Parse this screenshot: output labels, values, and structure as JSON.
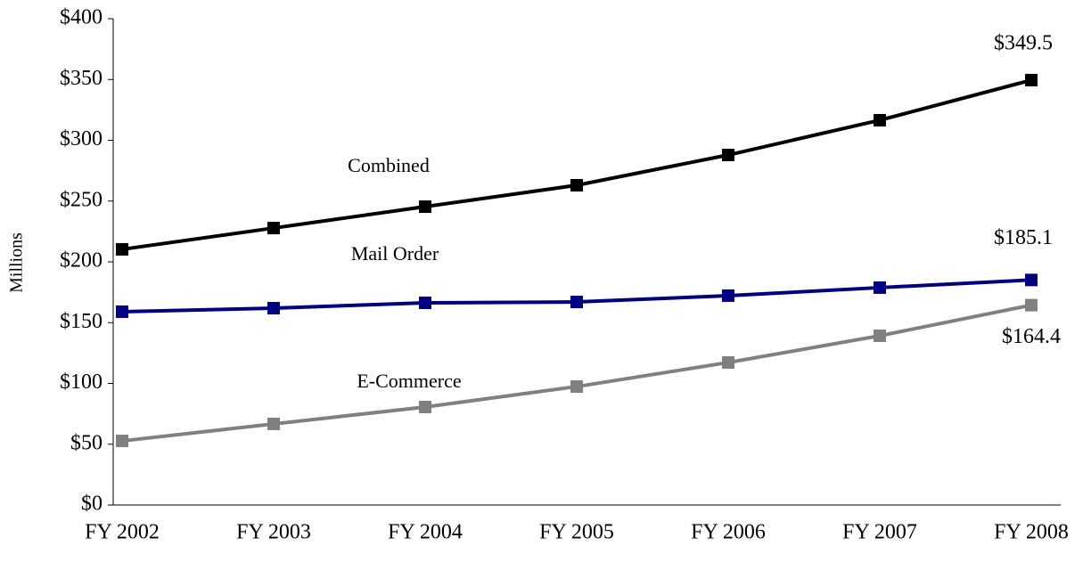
{
  "chart_data": {
    "type": "line",
    "ylabel": "Millions",
    "categories": [
      "FY 2002",
      "FY 2003",
      "FY 2004",
      "FY 2005",
      "FY 2006",
      "FY 2007",
      "FY 2008"
    ],
    "series": [
      {
        "name": "Combined",
        "color": "#000000",
        "values": [
          210.3,
          227.8,
          245.4,
          263.0,
          287.9,
          316.5,
          349.5
        ],
        "value_labels": [
          null,
          null,
          null,
          null,
          null,
          null,
          "$349.5"
        ]
      },
      {
        "name": "Mail Order",
        "color": "#000080",
        "values": [
          159.0,
          161.9,
          166.3,
          167.0,
          172.2,
          178.8,
          185.1
        ],
        "value_labels": [
          null,
          null,
          null,
          null,
          null,
          null,
          "$185.1"
        ]
      },
      {
        "name": "E-Commerce",
        "color": "#808080",
        "values": [
          52.7,
          66.7,
          80.6,
          97.4,
          117.2,
          139.2,
          164.4
        ],
        "value_labels": [
          null,
          null,
          null,
          null,
          null,
          null,
          "$164.4"
        ]
      }
    ],
    "ylim": [
      0,
      400
    ],
    "yticks": [
      {
        "value": 0,
        "label": "$0"
      },
      {
        "value": 50,
        "label": "$50"
      },
      {
        "value": 100,
        "label": "$100"
      },
      {
        "value": 150,
        "label": "$150"
      },
      {
        "value": 200,
        "label": "$200"
      },
      {
        "value": 250,
        "label": "$250"
      },
      {
        "value": 300,
        "label": "$300"
      },
      {
        "value": 350,
        "label": "$350"
      },
      {
        "value": 400,
        "label": "$400"
      }
    ],
    "grid": false
  }
}
